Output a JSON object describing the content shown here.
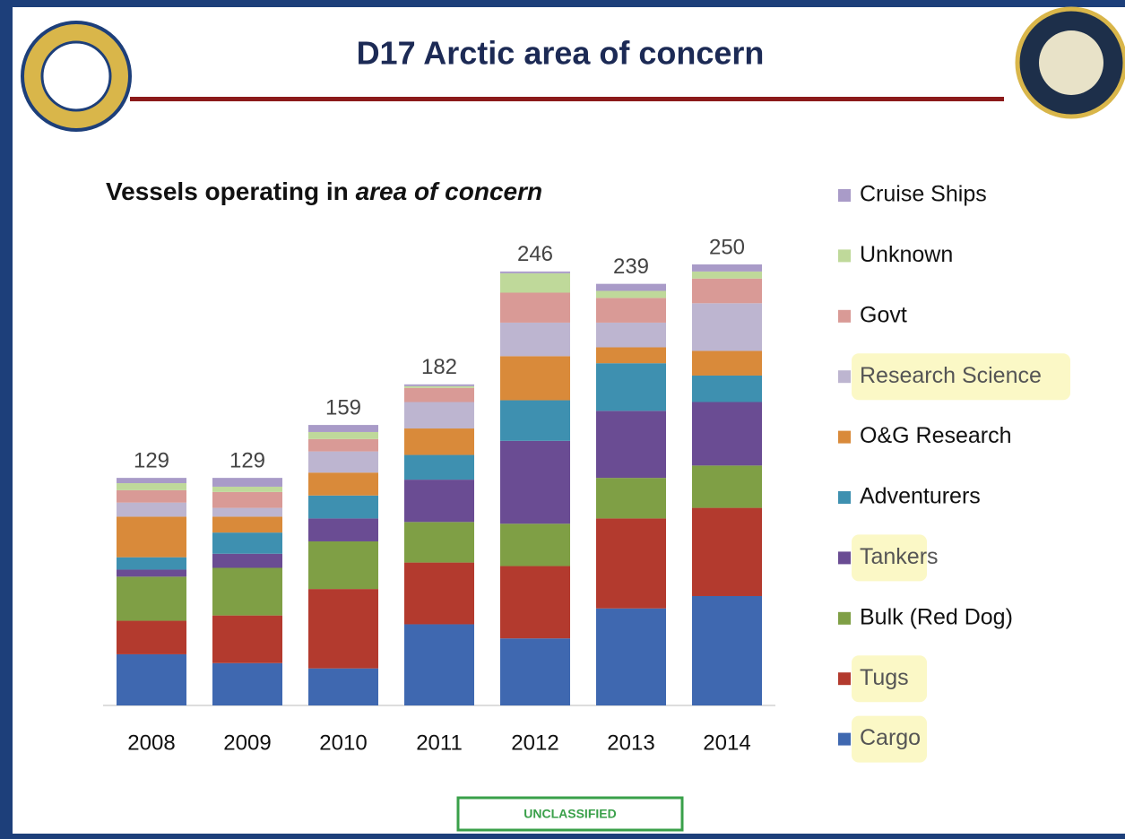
{
  "title": "D17 Arctic area of concern",
  "footer": "UNCLASSIFIED",
  "chart_data": {
    "type": "stacked_bar",
    "title": "Vessels operating in ",
    "title_emphasis": "area of concern",
    "categories": [
      "2008",
      "2009",
      "2010",
      "2011",
      "2012",
      "2013",
      "2014"
    ],
    "totals": [
      129,
      129,
      159,
      182,
      246,
      239,
      250
    ],
    "ylim": [
      0,
      250
    ],
    "series": [
      {
        "name": "Cargo",
        "color": "#3f68b0",
        "highlighted": true,
        "values": [
          29,
          24,
          21,
          46,
          38,
          55,
          62
        ]
      },
      {
        "name": "Tugs",
        "color": "#b33a2e",
        "highlighted": true,
        "values": [
          19,
          27,
          45,
          35,
          41,
          51,
          50
        ]
      },
      {
        "name": "Bulk (Red Dog)",
        "color": "#7f9f45",
        "highlighted": false,
        "values": [
          25,
          27,
          27,
          23,
          24,
          23,
          24
        ]
      },
      {
        "name": "Tankers",
        "color": "#6a4c93",
        "highlighted": true,
        "values": [
          4,
          8,
          13,
          24,
          47,
          38,
          36
        ]
      },
      {
        "name": "Adventurers",
        "color": "#3e90b0",
        "highlighted": false,
        "values": [
          7,
          12,
          13,
          14,
          23,
          27,
          15
        ]
      },
      {
        "name": "O&G Research",
        "color": "#d98a3a",
        "highlighted": false,
        "values": [
          23,
          9,
          13,
          15,
          25,
          9,
          14
        ]
      },
      {
        "name": "Research Science",
        "color": "#bdb5d0",
        "highlighted": true,
        "values": [
          8,
          5,
          12,
          15,
          19,
          14,
          27
        ]
      },
      {
        "name": "Govt",
        "color": "#d99a96",
        "highlighted": false,
        "values": [
          7,
          9,
          7,
          8,
          17,
          14,
          14
        ]
      },
      {
        "name": "Unknown",
        "color": "#bfd99a",
        "highlighted": false,
        "values": [
          4,
          3,
          4,
          1,
          11,
          4,
          4
        ]
      },
      {
        "name": "Cruise Ships",
        "color": "#a99bc8",
        "highlighted": false,
        "values": [
          3,
          5,
          4,
          1,
          1,
          4,
          4
        ]
      }
    ]
  }
}
